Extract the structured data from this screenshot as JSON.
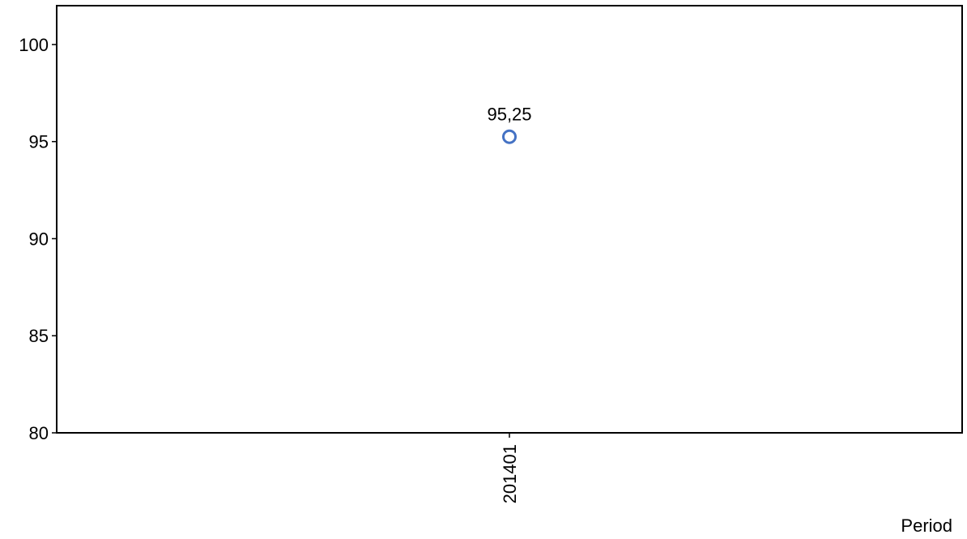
{
  "chart_data": {
    "type": "scatter",
    "title": "",
    "xlabel": "Period",
    "ylabel": "",
    "categories": [
      "201401"
    ],
    "series": [
      {
        "values": [
          95.25
        ],
        "labels": [
          "95,25"
        ],
        "marker": "hollow-circle",
        "color": "#4472C4"
      }
    ],
    "ylim": [
      80,
      102
    ],
    "yticks": [
      80,
      85,
      90,
      95,
      100
    ],
    "ytick_labels": [
      "80",
      "85",
      "90",
      "95",
      "100"
    ],
    "grid": false,
    "legend": "none",
    "x_tick_rotation": "vertical"
  },
  "colors": {
    "marker": "#4472C4",
    "axis": "#000000",
    "background": "#ffffff"
  }
}
